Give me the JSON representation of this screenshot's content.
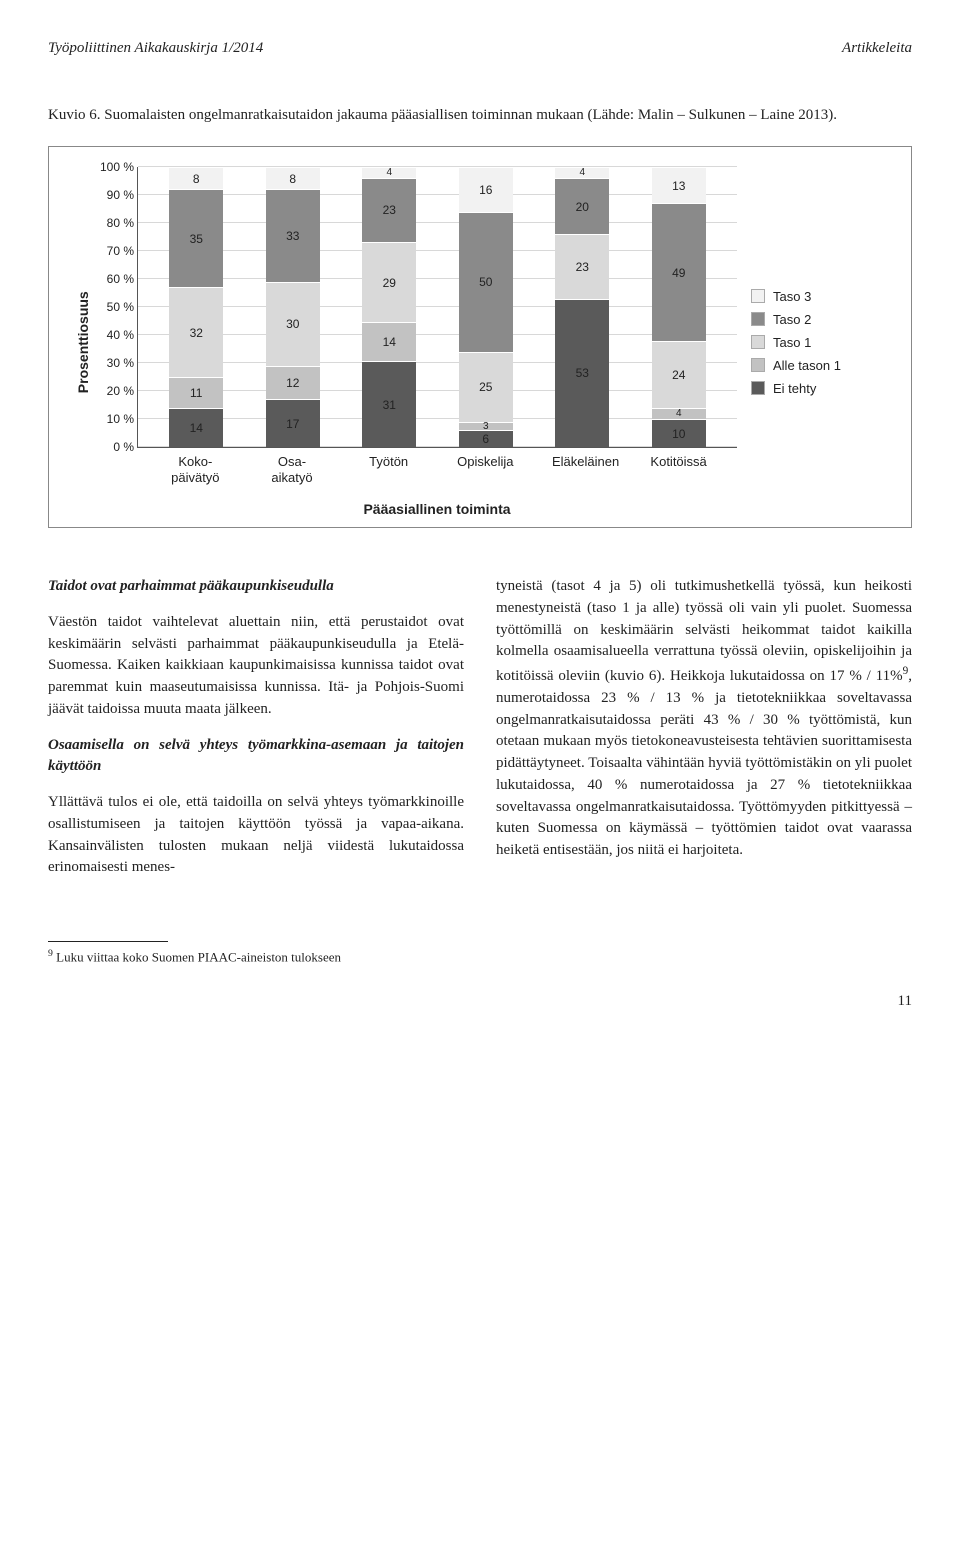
{
  "header": {
    "journal": "Työpoliittinen Aikakauskirja 1/2014",
    "section": "Artikkeleita"
  },
  "figure": {
    "caption": "Kuvio 6. Suomalaisten ongelmanratkaisutaidon jakauma pääasiallisen toiminnan mukaan (Lähde: Malin – Sulkunen – Laine 2013).",
    "ylabel": "Prosenttiosuus",
    "xaxis_title": "Pääasiallinen toiminta",
    "yticks": [
      "0 %",
      "10 %",
      "20 %",
      "30 %",
      "40 %",
      "50 %",
      "60 %",
      "70 %",
      "80 %",
      "90 %",
      "100 %"
    ],
    "categories": [
      "Koko-\npäivätyö",
      "Osa-\naikatyö",
      "Työtön",
      "Opiskelija",
      "Eläkeläinen",
      "Kotitöissä"
    ],
    "legend": [
      {
        "label": "Taso 3",
        "color": "#f2f2f2"
      },
      {
        "label": "Taso 2",
        "color": "#8a8a8a"
      },
      {
        "label": "Taso 1",
        "color": "#d9d9d9"
      },
      {
        "label": "Alle tason 1",
        "color": "#c2c2c2"
      },
      {
        "label": "Ei tehty",
        "color": "#5a5a5a"
      }
    ],
    "stacks": [
      [
        {
          "v": 14,
          "c": "#5a5a5a"
        },
        {
          "v": 11,
          "c": "#c2c2c2"
        },
        {
          "v": 32,
          "c": "#d9d9d9"
        },
        {
          "v": 35,
          "c": "#8a8a8a"
        },
        {
          "v": 8,
          "c": "#f2f2f2"
        }
      ],
      [
        {
          "v": 17,
          "c": "#5a5a5a"
        },
        {
          "v": 12,
          "c": "#c2c2c2"
        },
        {
          "v": 30,
          "c": "#d9d9d9"
        },
        {
          "v": 33,
          "c": "#8a8a8a"
        },
        {
          "v": 8,
          "c": "#f2f2f2"
        }
      ],
      [
        {
          "v": 31,
          "c": "#5a5a5a"
        },
        {
          "v": 14,
          "c": "#c2c2c2"
        },
        {
          "v": 29,
          "c": "#d9d9d9"
        },
        {
          "v": 23,
          "c": "#8a8a8a"
        },
        {
          "v": 4,
          "c": "#f2f2f2",
          "small": true
        }
      ],
      [
        {
          "v": 6,
          "c": "#5a5a5a"
        },
        {
          "v": 3,
          "c": "#c2c2c2",
          "small": true
        },
        {
          "v": 25,
          "c": "#d9d9d9"
        },
        {
          "v": 50,
          "c": "#8a8a8a"
        },
        {
          "v": 16,
          "c": "#f2f2f2"
        }
      ],
      [
        {
          "v": 53,
          "c": "#5a5a5a"
        },
        {
          "v": 23,
          "c": "#d9d9d9"
        },
        {
          "v": 20,
          "c": "#8a8a8a"
        },
        {
          "v": 4,
          "c": "#f2f2f2",
          "small": true
        }
      ],
      [
        {
          "v": 10,
          "c": "#5a5a5a"
        },
        {
          "v": 4,
          "c": "#c2c2c2",
          "small": true
        },
        {
          "v": 24,
          "c": "#d9d9d9"
        },
        {
          "v": 49,
          "c": "#8a8a8a"
        },
        {
          "v": 13,
          "c": "#f2f2f2"
        }
      ]
    ]
  },
  "body": {
    "h1": "Taidot ovat parhaimmat pääkaupunkiseudulla",
    "p1": "Väestön taidot vaihtelevat aluettain niin, että perustaidot ovat keskimäärin selvästi parhaimmat pääkaupunkiseudulla ja Etelä-Suomessa. Kaiken kaikkiaan kaupunkimaisissa kunnissa taidot ovat paremmat kuin maaseutumaisissa kunnissa. Itä- ja Pohjois-Suomi jäävät taidoissa muuta maata jälkeen.",
    "h2": "Osaamisella on selvä yhteys työmarkkina-asemaan ja taitojen käyttöön",
    "p2": "Yllättävä tulos ei ole, että taidoilla on selvä yhteys työmarkkinoille osallistumiseen ja taitojen käyttöön työssä ja vapaa-aikana. Kansainvälisten tulosten mukaan neljä viidestä lukutaidossa erinomaisesti menes-",
    "p3a": "tyneistä (tasot 4 ja 5) oli tutkimushetkellä työssä, kun heikosti menestyneistä (taso 1 ja alle) työssä oli vain yli puolet. Suomessa työttömillä on keskimäärin selvästi heikommat taidot kaikilla kolmella osaamisalueella verrattuna työssä oleviin, opiskelijoihin ja kotitöissä oleviin (kuvio 6). Heikkoja lukutaidossa on 17 % / 11%",
    "p3b": ", numerotaidossa 23 % / 13 % ja tietotekniikkaa soveltavassa ongelmanratkaisutaidossa peräti 43 % / 30 % työttömistä, kun otetaan mukaan myös tietokoneavusteisesta tehtävien suorittamisesta pidättäytyneet. Toisaalta vähintään hyviä työttömistäkin on yli puolet lukutaidossa, 40 % numerotaidossa ja 27 % tietotekniikkaa soveltavassa ongelmanratkaisutaidossa. Työttömyyden pitkittyessä – kuten Suomessa on käymässä – työttömien taidot ovat vaarassa heiketä entisestään, jos niitä ei harjoiteta.",
    "sup9": "9"
  },
  "footnote": {
    "marker": "9",
    "text": " Luku viittaa koko  Suomen PIAAC-aineiston tulokseen"
  },
  "page": "11"
}
